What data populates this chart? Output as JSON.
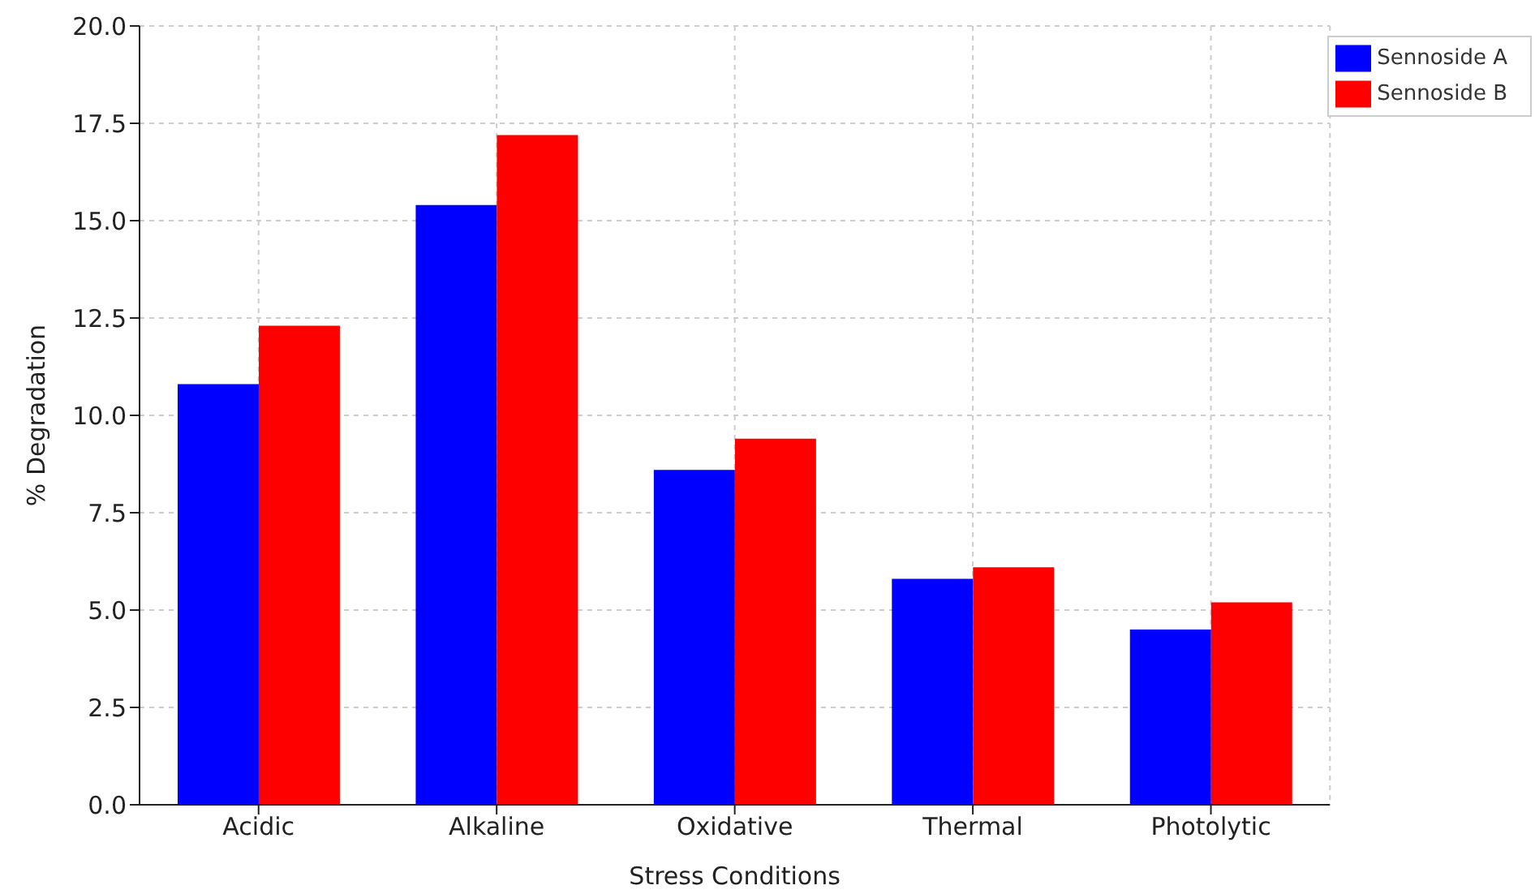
{
  "chart_data": {
    "type": "bar",
    "xlabel": "Stress Conditions",
    "ylabel": "% Degradation",
    "categories": [
      "Acidic",
      "Alkaline",
      "Oxidative",
      "Thermal",
      "Photolytic"
    ],
    "series": [
      {
        "name": "Sennoside A",
        "color": "#0000ff",
        "values": [
          10.8,
          15.4,
          8.6,
          5.8,
          4.5
        ]
      },
      {
        "name": "Sennoside B",
        "color": "#ff0000",
        "values": [
          12.3,
          17.2,
          9.4,
          6.1,
          5.2
        ]
      }
    ],
    "ylim": [
      0,
      20
    ],
    "yticks": [
      {
        "value": 0,
        "label": "0.0"
      },
      {
        "value": 2.5,
        "label": "2.5"
      },
      {
        "value": 5,
        "label": "5.0"
      },
      {
        "value": 7.5,
        "label": "7.5"
      },
      {
        "value": 10,
        "label": "10.0"
      },
      {
        "value": 12.5,
        "label": "12.5"
      },
      {
        "value": 15,
        "label": "15.0"
      },
      {
        "value": 17.5,
        "label": "17.5"
      },
      {
        "value": 20,
        "label": "20.0"
      }
    ],
    "grid": true,
    "legend": "top right"
  }
}
